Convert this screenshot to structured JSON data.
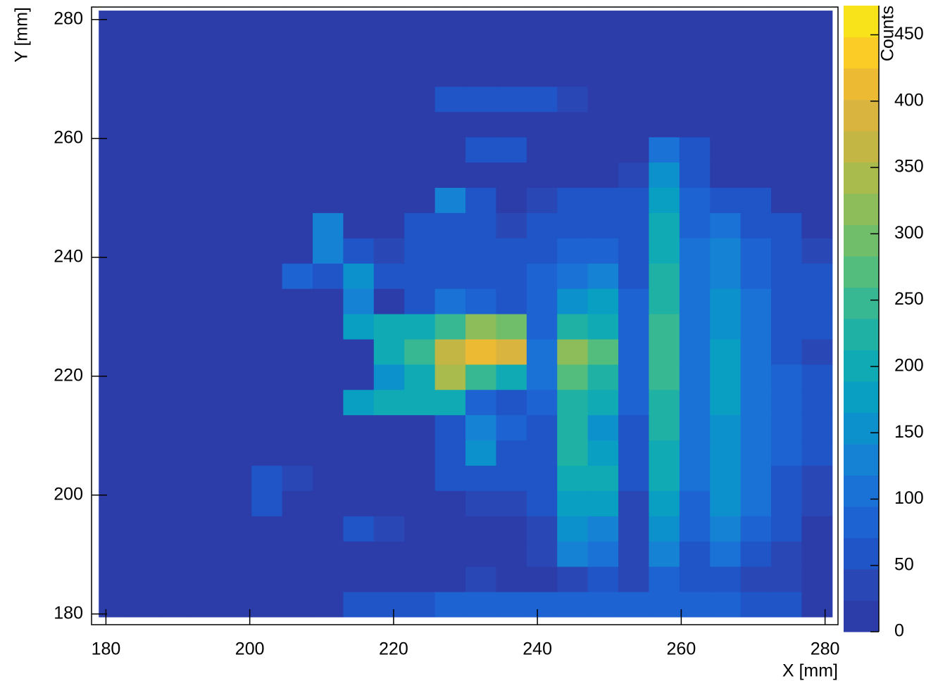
{
  "chart_data": {
    "type": "heatmap",
    "x_label": "X [mm]",
    "y_label": "Y [mm]",
    "z_label": "Counts",
    "xlim": [
      178,
      281.8
    ],
    "ylim": [
      178.2,
      282.1
    ],
    "zlim": [
      0,
      472
    ],
    "xticks": [
      180,
      200,
      220,
      240,
      260,
      280
    ],
    "yticks": [
      180,
      200,
      220,
      240,
      260,
      280
    ],
    "zticks": [
      0,
      50,
      100,
      150,
      200,
      250,
      300,
      350,
      400,
      450
    ],
    "xbins": [
      179,
      183.25,
      187.5,
      191.75,
      196,
      200.25,
      204.5,
      208.75,
      213,
      217.25,
      221.5,
      225.75,
      230,
      234.25,
      238.5,
      242.75,
      247,
      251.25,
      255.5,
      259.75,
      264,
      268.25,
      272.5,
      276.75,
      281
    ],
    "ybins": [
      179.5,
      183.75,
      188,
      192.25,
      196.5,
      200.75,
      205,
      209.25,
      213.5,
      217.75,
      222,
      226.25,
      230.5,
      234.75,
      239,
      243.25,
      247.5,
      251.75,
      256,
      260.25,
      264.5,
      268.75,
      273,
      277.25,
      281.5
    ],
    "palette": [
      "#2c3ca9",
      "#2a47b6",
      "#1f55c6",
      "#1d63d2",
      "#1a72d7",
      "#1582d4",
      "#0d91cc",
      "#099fc2",
      "#10aab5",
      "#1fb2a4",
      "#38b892",
      "#53bd7d",
      "#70bd6a",
      "#8dbd5a",
      "#a9bb4d",
      "#c3b645",
      "#d9b43e",
      "#edba33",
      "#fbcc26",
      "#f8e31a"
    ],
    "z": [
      [
        15,
        15,
        15,
        15,
        15,
        15,
        15,
        15,
        70,
        70,
        70,
        80,
        80,
        80,
        90,
        90,
        90,
        80,
        80,
        80,
        80,
        70,
        70,
        15
      ],
      [
        15,
        15,
        15,
        15,
        15,
        15,
        15,
        15,
        15,
        15,
        15,
        15,
        40,
        15,
        15,
        40,
        60,
        40,
        90,
        60,
        60,
        40,
        30,
        15
      ],
      [
        15,
        15,
        15,
        15,
        15,
        15,
        15,
        15,
        15,
        15,
        15,
        15,
        15,
        15,
        40,
        120,
        110,
        40,
        120,
        60,
        100,
        70,
        40,
        15
      ],
      [
        15,
        15,
        15,
        15,
        15,
        15,
        15,
        15,
        60,
        40,
        15,
        15,
        15,
        15,
        40,
        160,
        140,
        40,
        150,
        80,
        130,
        90,
        60,
        15
      ],
      [
        15,
        15,
        15,
        15,
        15,
        50,
        15,
        15,
        15,
        15,
        15,
        15,
        30,
        40,
        60,
        180,
        170,
        40,
        180,
        90,
        150,
        100,
        60,
        30
      ],
      [
        15,
        15,
        15,
        15,
        15,
        50,
        40,
        15,
        15,
        15,
        15,
        60,
        50,
        60,
        60,
        200,
        200,
        50,
        200,
        100,
        150,
        110,
        70,
        40
      ],
      [
        15,
        15,
        15,
        15,
        15,
        15,
        15,
        15,
        15,
        15,
        15,
        50,
        150,
        50,
        60,
        220,
        170,
        60,
        210,
        110,
        160,
        110,
        80,
        50
      ],
      [
        15,
        15,
        15,
        15,
        15,
        15,
        15,
        15,
        15,
        15,
        15,
        60,
        130,
        80,
        70,
        230,
        160,
        70,
        220,
        110,
        160,
        110,
        80,
        50
      ],
      [
        15,
        15,
        15,
        15,
        15,
        15,
        15,
        15,
        180,
        200,
        200,
        200,
        80,
        60,
        80,
        230,
        200,
        80,
        230,
        110,
        170,
        110,
        80,
        50
      ],
      [
        15,
        15,
        15,
        15,
        15,
        15,
        15,
        15,
        15,
        150,
        200,
        350,
        250,
        200,
        100,
        260,
        230,
        80,
        240,
        110,
        170,
        110,
        80,
        50
      ],
      [
        15,
        15,
        15,
        15,
        15,
        15,
        15,
        15,
        15,
        200,
        250,
        360,
        420,
        380,
        100,
        320,
        270,
        80,
        250,
        110,
        170,
        100,
        70,
        40
      ],
      [
        15,
        15,
        15,
        15,
        15,
        15,
        15,
        15,
        180,
        200,
        200,
        250,
        330,
        300,
        80,
        230,
        190,
        80,
        240,
        110,
        160,
        100,
        70,
        50
      ],
      [
        15,
        15,
        15,
        15,
        15,
        15,
        15,
        15,
        140,
        15,
        60,
        100,
        80,
        60,
        80,
        150,
        170,
        80,
        230,
        110,
        150,
        100,
        70,
        50
      ],
      [
        15,
        15,
        15,
        15,
        15,
        15,
        80,
        60,
        160,
        60,
        60,
        60,
        60,
        50,
        80,
        100,
        140,
        70,
        220,
        110,
        140,
        90,
        70,
        50
      ],
      [
        15,
        15,
        15,
        15,
        15,
        15,
        15,
        140,
        50,
        40,
        50,
        60,
        50,
        60,
        70,
        80,
        80,
        70,
        210,
        100,
        120,
        80,
        60,
        40
      ],
      [
        15,
        15,
        15,
        15,
        15,
        15,
        15,
        130,
        15,
        15,
        60,
        70,
        50,
        40,
        60,
        70,
        70,
        60,
        190,
        90,
        100,
        70,
        50,
        15
      ],
      [
        15,
        15,
        15,
        15,
        15,
        15,
        15,
        15,
        15,
        15,
        15,
        120,
        60,
        15,
        40,
        60,
        50,
        60,
        170,
        80,
        70,
        50,
        15,
        15
      ],
      [
        15,
        15,
        15,
        15,
        15,
        15,
        15,
        15,
        15,
        15,
        15,
        15,
        15,
        15,
        15,
        15,
        15,
        40,
        150,
        70,
        15,
        15,
        15,
        15
      ],
      [
        15,
        15,
        15,
        15,
        15,
        15,
        15,
        15,
        15,
        15,
        15,
        15,
        50,
        50,
        15,
        15,
        15,
        15,
        100,
        60,
        15,
        15,
        15,
        15
      ],
      [
        15,
        15,
        15,
        15,
        15,
        15,
        15,
        15,
        15,
        15,
        15,
        15,
        15,
        15,
        15,
        15,
        15,
        15,
        15,
        15,
        15,
        15,
        15,
        15
      ],
      [
        15,
        15,
        15,
        15,
        15,
        15,
        15,
        15,
        15,
        15,
        15,
        60,
        70,
        70,
        60,
        40,
        15,
        15,
        15,
        15,
        15,
        15,
        15,
        15
      ],
      [
        15,
        15,
        15,
        15,
        15,
        15,
        15,
        15,
        15,
        15,
        15,
        15,
        15,
        15,
        15,
        15,
        15,
        15,
        15,
        15,
        15,
        15,
        15,
        15
      ],
      [
        15,
        15,
        15,
        15,
        15,
        15,
        15,
        15,
        15,
        15,
        15,
        15,
        15,
        15,
        15,
        15,
        15,
        15,
        15,
        15,
        15,
        15,
        15,
        15
      ],
      [
        15,
        15,
        15,
        15,
        15,
        15,
        15,
        15,
        15,
        15,
        15,
        15,
        15,
        15,
        15,
        15,
        15,
        15,
        15,
        15,
        15,
        15,
        15,
        15
      ]
    ]
  }
}
